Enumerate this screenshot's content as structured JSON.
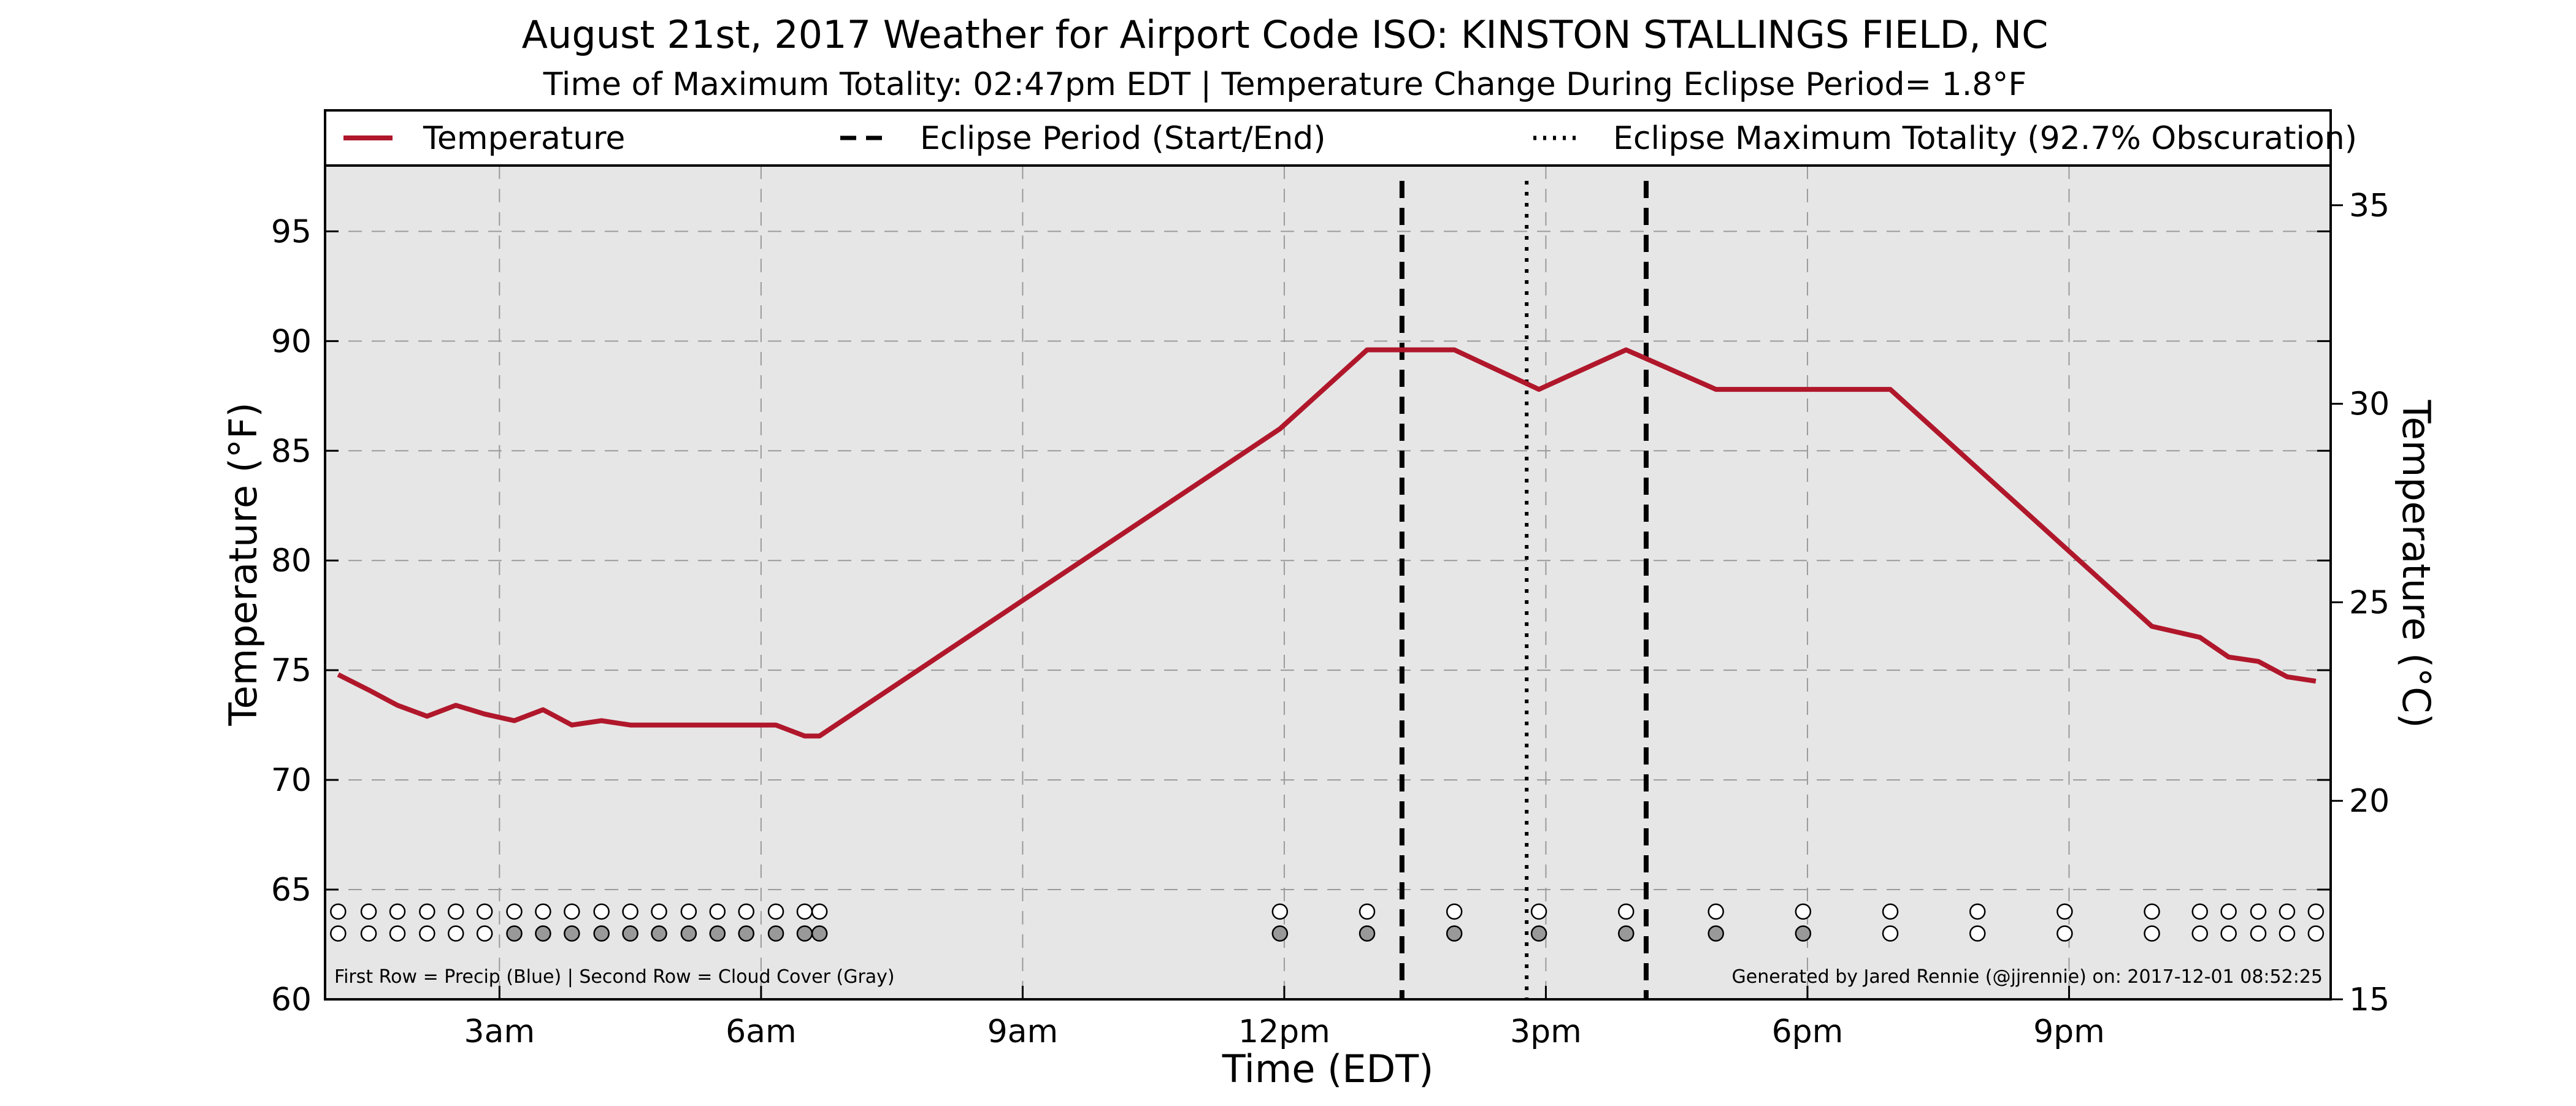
{
  "chart_data": {
    "type": "line",
    "title": "August 21st, 2017 Weather for Airport Code ISO: KINSTON STALLINGS FIELD, NC",
    "subtitle": "Time of Maximum Totality: 02:47pm EDT | Temperature Change During Eclipse Period= 1.8°F",
    "xlabel": "Time (EDT)",
    "ylabel": "Temperature (°F)",
    "ylabel_right": "Temperature (°C)",
    "xlim_hours": [
      1.0,
      24.0
    ],
    "ylim": [
      60,
      98
    ],
    "ylim_right": [
      15,
      36
    ],
    "grid": true,
    "legend_position": "top",
    "x_ticks": [
      {
        "hour": 3,
        "label": "3am"
      },
      {
        "hour": 6,
        "label": "6am"
      },
      {
        "hour": 9,
        "label": "9am"
      },
      {
        "hour": 12,
        "label": "12pm"
      },
      {
        "hour": 15,
        "label": "3pm"
      },
      {
        "hour": 18,
        "label": "6pm"
      },
      {
        "hour": 21,
        "label": "9pm"
      }
    ],
    "y_ticks": [
      60,
      65,
      70,
      75,
      80,
      85,
      90,
      95
    ],
    "y_ticks_right": [
      15,
      20,
      25,
      30,
      35
    ],
    "legend": [
      {
        "label": "Temperature",
        "style": "solid",
        "color": "#b0172b"
      },
      {
        "label": "Eclipse Period (Start/End)",
        "style": "dashed",
        "color": "#000000"
      },
      {
        "label": "Eclipse Maximum Totality (92.7% Obscuration)",
        "style": "dotted",
        "color": "#000000"
      }
    ],
    "series": [
      {
        "name": "Temperature",
        "color": "#b0172b",
        "x_hours": [
          1.15,
          1.5,
          1.83,
          2.17,
          2.5,
          2.83,
          3.17,
          3.5,
          3.83,
          4.17,
          4.5,
          6.17,
          6.5,
          6.67,
          11.95,
          12.95,
          13.95,
          14.92,
          15.92,
          16.95,
          17.95,
          18.95,
          20.95,
          21.95,
          22.5,
          22.83,
          23.17,
          23.5,
          23.83
        ],
        "values": [
          74.8,
          74.1,
          73.4,
          72.9,
          73.4,
          73.0,
          72.7,
          73.2,
          72.5,
          72.7,
          72.5,
          72.5,
          72.0,
          72.0,
          86.0,
          89.6,
          89.6,
          87.8,
          89.6,
          87.8,
          87.8,
          87.8,
          80.6,
          77.0,
          76.5,
          75.6,
          75.4,
          74.7,
          74.5
        ]
      }
    ],
    "eclipse_start_hour": 13.35,
    "eclipse_end_hour": 16.15,
    "eclipse_max_hour": 14.78,
    "precip_row": {
      "y_value": 64,
      "markers": [
        {
          "hour": 1.15,
          "fill": "#ffffff"
        },
        {
          "hour": 1.5,
          "fill": "#ffffff"
        },
        {
          "hour": 1.83,
          "fill": "#ffffff"
        },
        {
          "hour": 2.17,
          "fill": "#ffffff"
        },
        {
          "hour": 2.5,
          "fill": "#ffffff"
        },
        {
          "hour": 2.83,
          "fill": "#ffffff"
        },
        {
          "hour": 3.17,
          "fill": "#ffffff"
        },
        {
          "hour": 3.5,
          "fill": "#ffffff"
        },
        {
          "hour": 3.83,
          "fill": "#ffffff"
        },
        {
          "hour": 4.17,
          "fill": "#ffffff"
        },
        {
          "hour": 4.5,
          "fill": "#ffffff"
        },
        {
          "hour": 4.83,
          "fill": "#ffffff"
        },
        {
          "hour": 5.17,
          "fill": "#ffffff"
        },
        {
          "hour": 5.5,
          "fill": "#ffffff"
        },
        {
          "hour": 5.83,
          "fill": "#ffffff"
        },
        {
          "hour": 6.17,
          "fill": "#ffffff"
        },
        {
          "hour": 6.5,
          "fill": "#ffffff"
        },
        {
          "hour": 6.67,
          "fill": "#ffffff"
        },
        {
          "hour": 11.95,
          "fill": "#ffffff"
        },
        {
          "hour": 12.95,
          "fill": "#ffffff"
        },
        {
          "hour": 13.95,
          "fill": "#ffffff"
        },
        {
          "hour": 14.92,
          "fill": "#ffffff"
        },
        {
          "hour": 15.92,
          "fill": "#ffffff"
        },
        {
          "hour": 16.95,
          "fill": "#ffffff"
        },
        {
          "hour": 17.95,
          "fill": "#ffffff"
        },
        {
          "hour": 18.95,
          "fill": "#ffffff"
        },
        {
          "hour": 19.95,
          "fill": "#ffffff"
        },
        {
          "hour": 20.95,
          "fill": "#ffffff"
        },
        {
          "hour": 21.95,
          "fill": "#ffffff"
        },
        {
          "hour": 22.5,
          "fill": "#ffffff"
        },
        {
          "hour": 22.83,
          "fill": "#ffffff"
        },
        {
          "hour": 23.17,
          "fill": "#ffffff"
        },
        {
          "hour": 23.5,
          "fill": "#ffffff"
        },
        {
          "hour": 23.83,
          "fill": "#ffffff"
        }
      ]
    },
    "cloud_row": {
      "y_value": 63,
      "markers": [
        {
          "hour": 1.15,
          "fill": "#ffffff"
        },
        {
          "hour": 1.5,
          "fill": "#ffffff"
        },
        {
          "hour": 1.83,
          "fill": "#ffffff"
        },
        {
          "hour": 2.17,
          "fill": "#ffffff"
        },
        {
          "hour": 2.5,
          "fill": "#ffffff"
        },
        {
          "hour": 2.83,
          "fill": "#ffffff"
        },
        {
          "hour": 3.17,
          "fill": "#999999"
        },
        {
          "hour": 3.5,
          "fill": "#999999"
        },
        {
          "hour": 3.83,
          "fill": "#999999"
        },
        {
          "hour": 4.17,
          "fill": "#999999"
        },
        {
          "hour": 4.5,
          "fill": "#999999"
        },
        {
          "hour": 4.83,
          "fill": "#999999"
        },
        {
          "hour": 5.17,
          "fill": "#999999"
        },
        {
          "hour": 5.5,
          "fill": "#999999"
        },
        {
          "hour": 5.83,
          "fill": "#999999"
        },
        {
          "hour": 6.17,
          "fill": "#999999"
        },
        {
          "hour": 6.5,
          "fill": "#999999"
        },
        {
          "hour": 6.67,
          "fill": "#999999"
        },
        {
          "hour": 11.95,
          "fill": "#999999"
        },
        {
          "hour": 12.95,
          "fill": "#999999"
        },
        {
          "hour": 13.95,
          "fill": "#999999"
        },
        {
          "hour": 14.92,
          "fill": "#999999"
        },
        {
          "hour": 15.92,
          "fill": "#999999"
        },
        {
          "hour": 16.95,
          "fill": "#999999"
        },
        {
          "hour": 17.95,
          "fill": "#999999"
        },
        {
          "hour": 18.95,
          "fill": "#ffffff"
        },
        {
          "hour": 19.95,
          "fill": "#ffffff"
        },
        {
          "hour": 20.95,
          "fill": "#ffffff"
        },
        {
          "hour": 21.95,
          "fill": "#ffffff"
        },
        {
          "hour": 22.5,
          "fill": "#ffffff"
        },
        {
          "hour": 22.83,
          "fill": "#ffffff"
        },
        {
          "hour": 23.17,
          "fill": "#ffffff"
        },
        {
          "hour": 23.5,
          "fill": "#ffffff"
        },
        {
          "hour": 23.83,
          "fill": "#ffffff"
        }
      ]
    },
    "footnote_left": "First Row = Precip (Blue) | Second Row = Cloud Cover (Gray)",
    "footnote_right": "Generated by Jared Rennie (@jjrennie) on: 2017-12-01 08:52:25"
  }
}
